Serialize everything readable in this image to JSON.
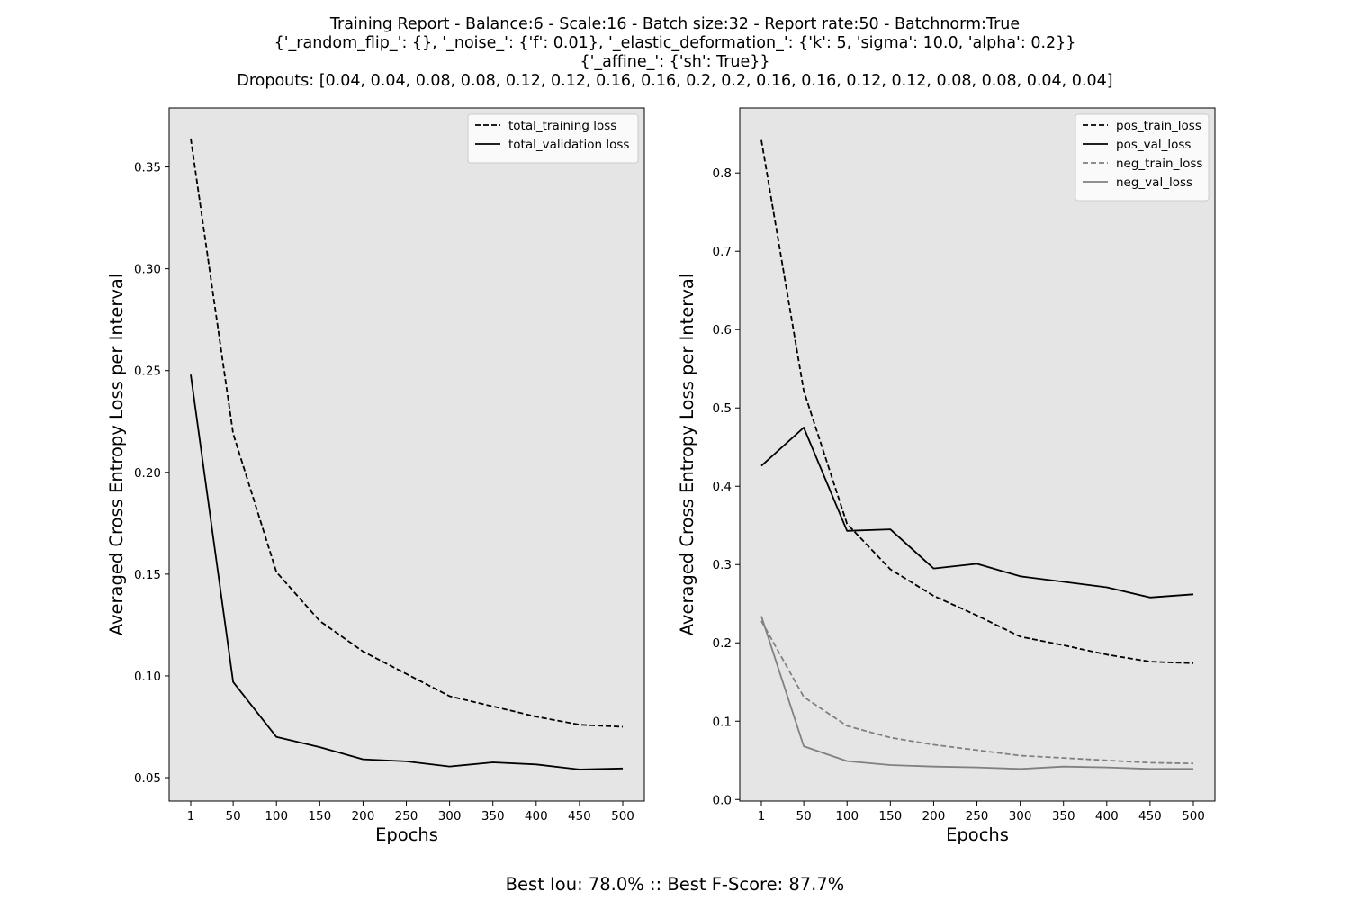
{
  "title_lines": [
    "Training Report - Balance:6 - Scale:16 - Batch size:32 - Report rate:50 - Batchnorm:True",
    "{'_random_flip_': {}, '_noise_': {'f': 0.01}, '_elastic_deformation_': {'k': 5, 'sigma': 10.0, 'alpha': 0.2}}",
    "{'_affine_': {'sh': True}}",
    "Dropouts: [0.04, 0.04, 0.08, 0.08, 0.12, 0.12, 0.16, 0.16, 0.2, 0.2, 0.16, 0.16, 0.12, 0.12, 0.08, 0.08, 0.04, 0.04]"
  ],
  "footer": "Best Iou: 78.0% :: Best F-Score: 87.7%",
  "colors": {
    "plot_bg": "#e5e5e5",
    "black": "#000000",
    "gray": "#808080"
  },
  "chart_data": [
    {
      "type": "line",
      "xlabel": "Epochs",
      "ylabel": "Averaged Cross Entropy Loss per Interval",
      "x": [
        1,
        50,
        100,
        150,
        200,
        250,
        300,
        350,
        400,
        450,
        500
      ],
      "x_ticks": [
        "1",
        "50",
        "100",
        "150",
        "200",
        "250",
        "300",
        "350",
        "400",
        "450",
        "500"
      ],
      "ylim": [
        0.0385,
        0.379
      ],
      "y_ticks": [
        0.05,
        0.1,
        0.15,
        0.2,
        0.25,
        0.3,
        0.35
      ],
      "y_tick_labels": [
        "0.05",
        "0.10",
        "0.15",
        "0.20",
        "0.25",
        "0.30",
        "0.35"
      ],
      "grid": false,
      "legend_position": "top-right",
      "series": [
        {
          "name": "total_training loss",
          "color": "#000000",
          "dash": "dashed",
          "values": [
            0.364,
            0.219,
            0.151,
            0.127,
            0.112,
            0.101,
            0.09,
            0.085,
            0.08,
            0.076,
            0.075
          ]
        },
        {
          "name": "total_validation loss",
          "color": "#000000",
          "dash": "solid",
          "values": [
            0.248,
            0.097,
            0.07,
            0.065,
            0.059,
            0.058,
            0.0555,
            0.0575,
            0.0565,
            0.054,
            0.0545
          ]
        }
      ]
    },
    {
      "type": "line",
      "xlabel": "Epochs",
      "ylabel": "Averaged Cross Entropy Loss per Interval",
      "x": [
        1,
        50,
        100,
        150,
        200,
        250,
        300,
        350,
        400,
        450,
        500
      ],
      "x_ticks": [
        "1",
        "50",
        "100",
        "150",
        "200",
        "250",
        "300",
        "350",
        "400",
        "450",
        "500"
      ],
      "ylim": [
        -0.002,
        0.883
      ],
      "y_ticks": [
        0.0,
        0.1,
        0.2,
        0.3,
        0.4,
        0.5,
        0.6,
        0.7,
        0.8
      ],
      "y_tick_labels": [
        "0.0",
        "0.1",
        "0.2",
        "0.3",
        "0.4",
        "0.5",
        "0.6",
        "0.7",
        "0.8"
      ],
      "grid": false,
      "legend_position": "top-right",
      "series": [
        {
          "name": "pos_train_loss",
          "color": "#000000",
          "dash": "dashed",
          "values": [
            0.842,
            0.522,
            0.352,
            0.294,
            0.26,
            0.235,
            0.208,
            0.197,
            0.185,
            0.176,
            0.174
          ]
        },
        {
          "name": "pos_val_loss",
          "color": "#000000",
          "dash": "solid",
          "values": [
            0.426,
            0.475,
            0.343,
            0.345,
            0.295,
            0.301,
            0.285,
            0.278,
            0.271,
            0.258,
            0.262
          ]
        },
        {
          "name": "neg_train_loss",
          "color": "#808080",
          "dash": "dashed",
          "values": [
            0.228,
            0.131,
            0.094,
            0.079,
            0.07,
            0.063,
            0.056,
            0.053,
            0.05,
            0.047,
            0.046
          ]
        },
        {
          "name": "neg_val_loss",
          "color": "#808080",
          "dash": "solid",
          "values": [
            0.234,
            0.068,
            0.049,
            0.044,
            0.042,
            0.041,
            0.039,
            0.042,
            0.041,
            0.039,
            0.039
          ]
        }
      ]
    }
  ]
}
